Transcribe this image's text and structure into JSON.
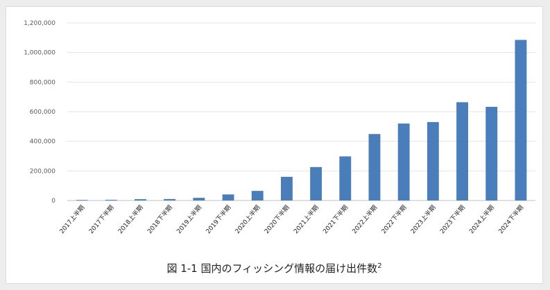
{
  "chart_data": {
    "type": "bar",
    "categories": [
      "2017上半期",
      "2017下半期",
      "2018上半期",
      "2018下半期",
      "2019上半期",
      "2019下半期",
      "2020上半期",
      "2020下半期",
      "2021上半期",
      "2021下半期",
      "2022上半期",
      "2022下半期",
      "2023上半期",
      "2023下半期",
      "2024上半期",
      "2024下半期"
    ],
    "values": [
      4000,
      5000,
      9000,
      10000,
      18000,
      41000,
      65000,
      160000,
      226000,
      298000,
      449000,
      520000,
      530000,
      664000,
      633000,
      1085000
    ],
    "ylim": [
      0,
      1200000
    ],
    "yticks": [
      0,
      200000,
      400000,
      600000,
      800000,
      1000000,
      1200000
    ],
    "ytick_labels": [
      "0",
      "200,000",
      "400,000",
      "600,000",
      "800,000",
      "1,000,000",
      "1,200,000"
    ],
    "grid": true,
    "bar_color": "#4a7ebb",
    "caption": "図 1-1 国内のフィッシング情報の届け出件数",
    "caption_sup": "2"
  }
}
